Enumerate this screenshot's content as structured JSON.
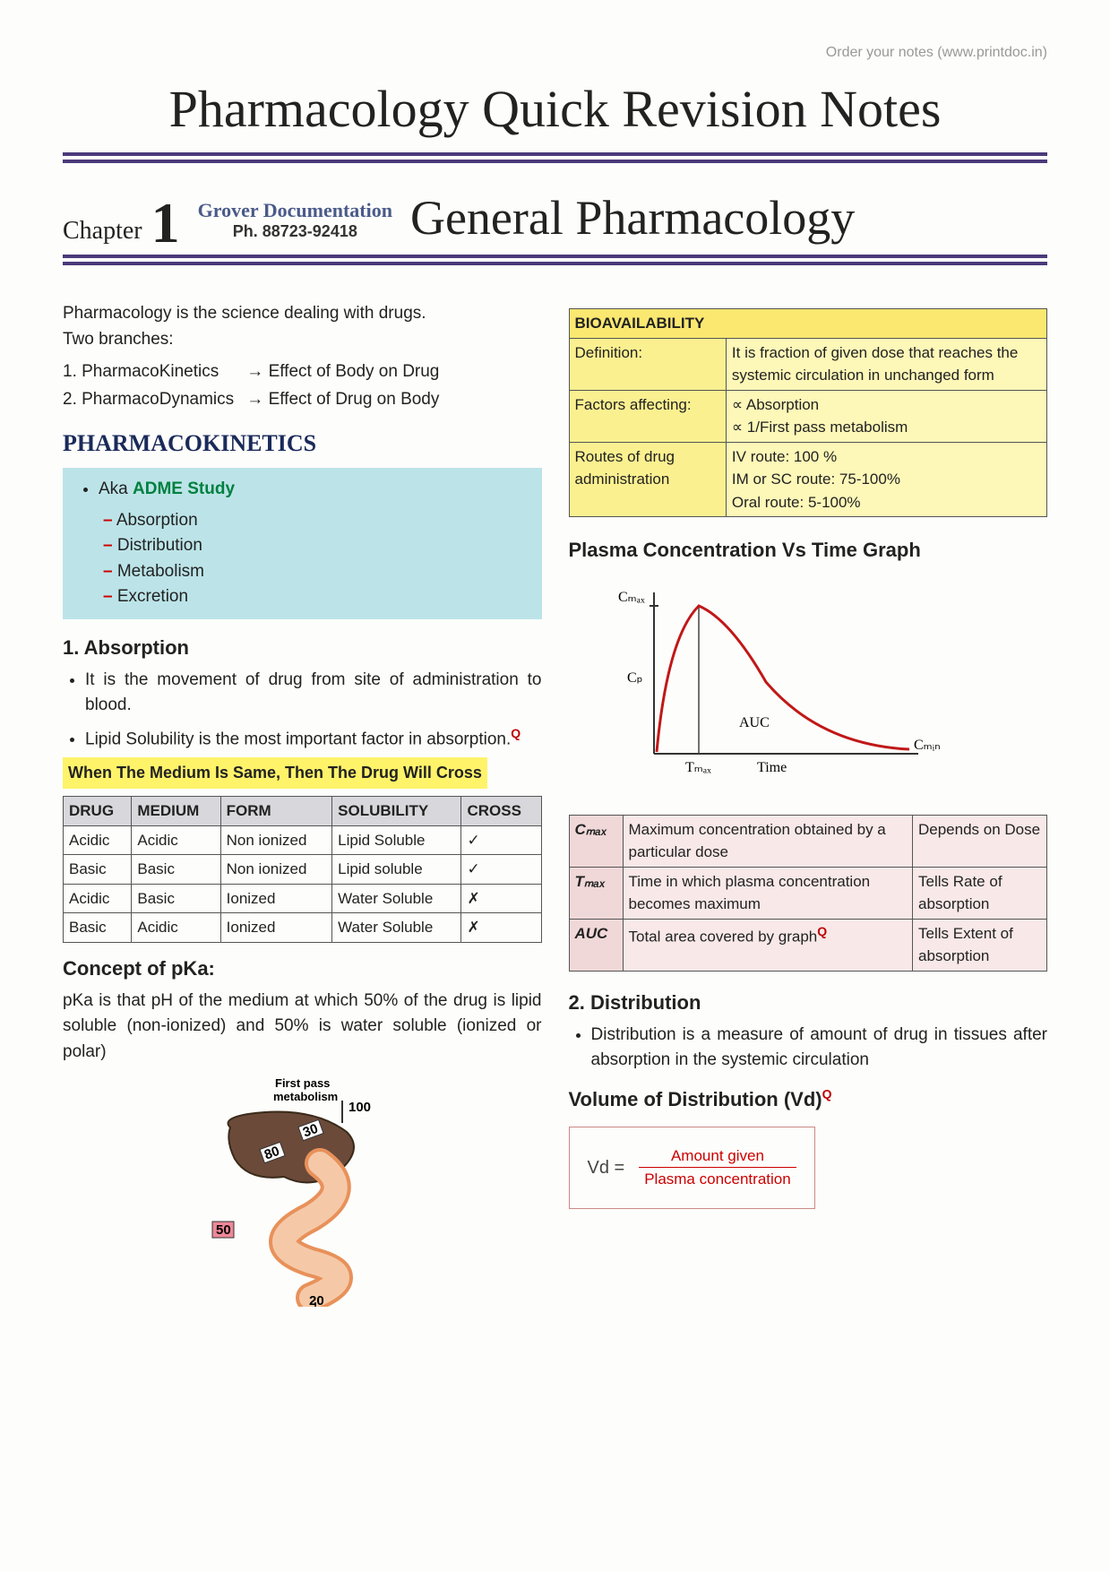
{
  "header": {
    "order_note": "Order your notes (www.printdoc.in)",
    "main_title": "Pharmacology Quick Revision Notes",
    "chapter_label": "Chapter",
    "chapter_num": "1",
    "watermark_line1": "Grover Documentation",
    "watermark_line2": "Ph. 88723-92418",
    "chapter_title": "General Pharmacology"
  },
  "left": {
    "intro": "Pharmacology is the science dealing with drugs.",
    "branches_label": "Two branches:",
    "branch1_name": "1. PharmacoKinetics",
    "branch1_arrow": "→",
    "branch1_effect": "Effect of Body on Drug",
    "branch2_name": "2. PharmacoDynamics",
    "branch2_arrow": "→",
    "branch2_effect": "Effect of Drug on Body",
    "pk_heading": "PHARMACOKINETICS",
    "adme_aka": "Aka ",
    "adme_label": "ADME Study",
    "adme_a": "Absorption",
    "adme_d": "Distribution",
    "adme_m": "Metabolism",
    "adme_e": "Excretion",
    "absorption_heading": "1. Absorption",
    "absorption_b1": "It is the movement of drug from site of administration to blood.",
    "absorption_b2": "Lipid Solubility is the most important factor in absorption.",
    "yellow_rule": "When The Medium Is Same, Then The Drug Will Cross",
    "cross_table": {
      "headers": [
        "DRUG",
        "MEDIUM",
        "FORM",
        "SOLUBILITY",
        "CROSS"
      ],
      "rows": [
        [
          "Acidic",
          "Acidic",
          "Non ionized",
          "Lipid Soluble",
          "✓"
        ],
        [
          "Basic",
          "Basic",
          "Non ionized",
          "Lipid soluble",
          "✓"
        ],
        [
          "Acidic",
          "Basic",
          "Ionized",
          "Water Soluble",
          "✗"
        ],
        [
          "Basic",
          "Acidic",
          "Ionized",
          "Water Soluble",
          "✗"
        ]
      ]
    },
    "pka_heading": "Concept of pKa:",
    "pka_text": "pKa is that pH of the medium at which 50% of the drug is lipid soluble (non-ionized) and 50% is water soluble (ionized or polar)",
    "liver_label": "First pass\nmetabolism",
    "liver_numbers": {
      "in": "100",
      "loop1": "30",
      "loop2": "80",
      "out_side": "50",
      "out_bottom": "20"
    }
  },
  "right": {
    "bio_table": {
      "title": "BIOAVAILABILITY",
      "rows": [
        [
          "Definition:",
          "It is fraction of given dose that reaches the systemic circulation in unchanged form"
        ],
        [
          "Factors affecting:",
          "∝ Absorption\n∝ 1/First pass metabolism"
        ],
        [
          "Routes of drug administration",
          "IV route: 100 %\nIM or SC route: 75-100%\nOral route: 5-100%"
        ]
      ]
    },
    "graph_title": "Plasma Concentration Vs Time Graph",
    "graph": {
      "y_label": "Cₘₐₓ",
      "cp_label": "Cₚ",
      "auc_label": "AUC",
      "cmin_label": "Cₘᵢₙ",
      "tmax_label": "Tₘₐₓ",
      "x_label": "Time",
      "curve_color": "#c01818",
      "axis_color": "#333"
    },
    "param_table": {
      "rows": [
        [
          "Cₘₐₓ",
          "Maximum concentration obtained by a particular dose",
          "Depends on Dose"
        ],
        [
          "Tₘₐₓ",
          "Time in which plasma concentration becomes maximum",
          "Tells Rate of absorption"
        ],
        [
          "AUC",
          "Total area covered by graph",
          "Tells Extent of absorption"
        ]
      ]
    },
    "dist_heading": "2. Distribution",
    "dist_bullet": "Distribution is a measure of amount of drug in tissues after absorption in the systemic circulation",
    "vd_heading": "Volume of Distribution (Vd)",
    "vd_formula": {
      "lhs": "Vd   =",
      "num": "Amount given",
      "den": "Plasma concentration"
    }
  },
  "colors": {
    "rule": "#4a3a7a",
    "adme_bg": "#bce4e8",
    "yellow": "#fff36a",
    "bio_bg": "#fdf7b8",
    "bio_header": "#fbe870",
    "pink": "#f8e8e8",
    "red": "#c01818"
  }
}
